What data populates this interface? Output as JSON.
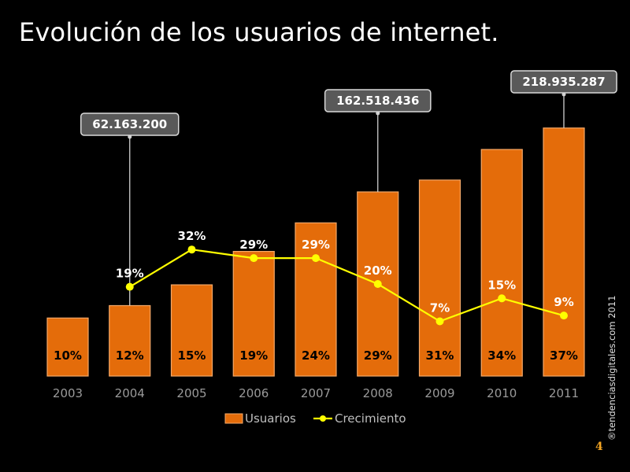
{
  "slide": {
    "title": "Evolución de los usuarios de internet.",
    "credit": "®tendenciasdigitales.com 2011",
    "page_number": "4"
  },
  "colors": {
    "background": "#000000",
    "bar": "#e46c0a",
    "bar_edge": "#f4a868",
    "line": "#ffff00",
    "callout_fill": "#595959",
    "callout_border": "#d9d9d9"
  },
  "chart_data": {
    "type": "bar",
    "categories": [
      "2003",
      "2004",
      "2005",
      "2006",
      "2007",
      "2008",
      "2009",
      "2010",
      "2011"
    ],
    "series": [
      {
        "name": "Usuarios",
        "type": "bar",
        "color": "#e46c0a",
        "values": [
          51200000,
          62163200,
          80500000,
          110000000,
          135200000,
          162518436,
          173000000,
          200000000,
          218935287
        ],
        "labels": [
          "10%",
          "12%",
          "15%",
          "19%",
          "24%",
          "29%",
          "31%",
          "34%",
          "37%"
        ]
      },
      {
        "name": "Crecimiento",
        "type": "line",
        "color": "#ffff00",
        "values": [
          null,
          19,
          32,
          29,
          29,
          20,
          7,
          15,
          9
        ],
        "labels": [
          "",
          "19%",
          "32%",
          "29%",
          "29%",
          "20%",
          "7%",
          "15%",
          "9%"
        ]
      }
    ],
    "callouts": [
      {
        "category": "2004",
        "text": "62.163.200"
      },
      {
        "category": "2008",
        "text": "162.518.436"
      },
      {
        "category": "2011",
        "text": "218.935.287"
      }
    ],
    "legend_position": "bottom",
    "grid": false
  }
}
